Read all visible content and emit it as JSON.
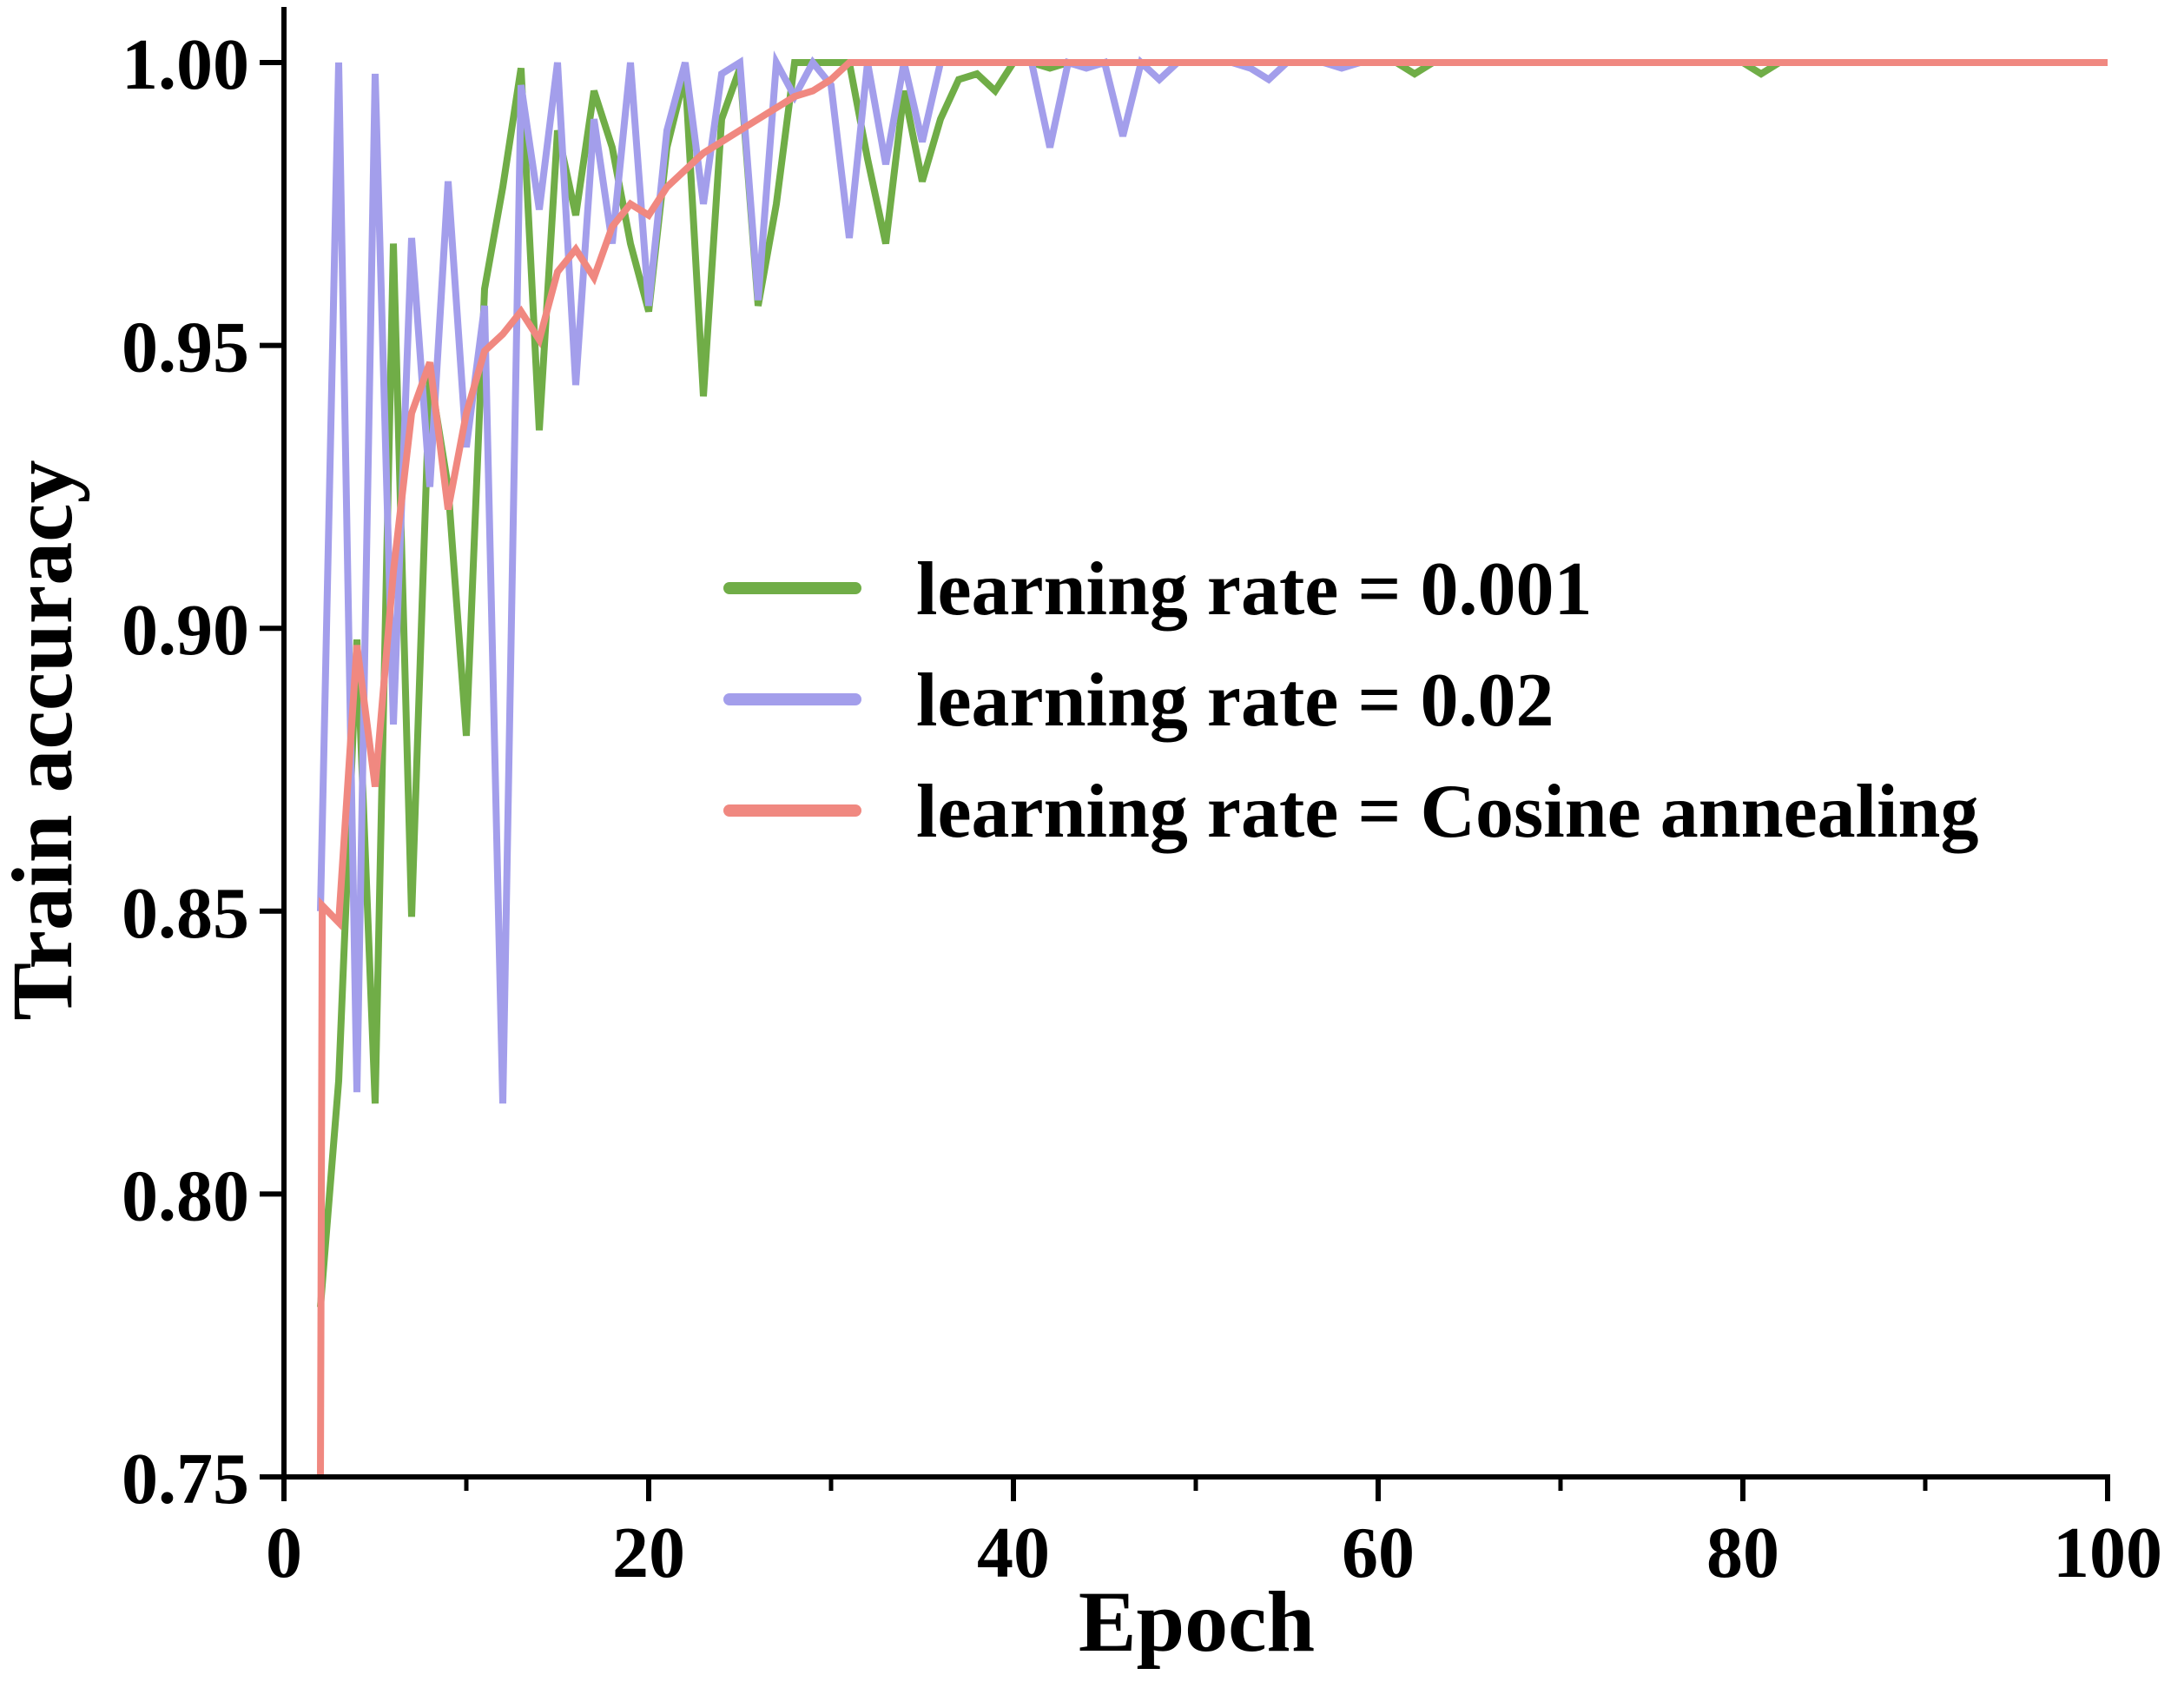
{
  "chart_data": {
    "type": "line",
    "title": "",
    "xlabel": "Epoch",
    "ylabel": "Train accuracy",
    "xlim": [
      0,
      100
    ],
    "ylim": [
      0.75,
      1.0
    ],
    "xticks": [
      0,
      20,
      40,
      60,
      80,
      100
    ],
    "xtick_labels": [
      "0",
      "20",
      "40",
      "60",
      "80",
      "100"
    ],
    "yticks": [
      0.75,
      0.8,
      0.85,
      0.9,
      0.95,
      1.0
    ],
    "ytick_labels": [
      "0.75",
      "0.80",
      "0.85",
      "0.90",
      "0.95",
      "1.00"
    ],
    "grid": false,
    "legend_position": "center-right",
    "series": [
      {
        "name": "learning rate = 0.001",
        "color": "#70AD47",
        "x": [
          2,
          3,
          4,
          5,
          6,
          7,
          8,
          9,
          10,
          11,
          12,
          13,
          14,
          15,
          16,
          17,
          18,
          19,
          20,
          21,
          22,
          23,
          24,
          25,
          26,
          27,
          28,
          29,
          30,
          31,
          32,
          33,
          34,
          35,
          36,
          37,
          38,
          39,
          40,
          41,
          42,
          43,
          44,
          45,
          46,
          47,
          48,
          49,
          50,
          51,
          52,
          53,
          54,
          55,
          56,
          57,
          58,
          59,
          60,
          61,
          62,
          63,
          64,
          65,
          66,
          67,
          68,
          69,
          70,
          71,
          72,
          73,
          74,
          75,
          76,
          77,
          78,
          79,
          80,
          81,
          82,
          83,
          84,
          85,
          86,
          87,
          88,
          89,
          90,
          91,
          92,
          93,
          94,
          95,
          96,
          97,
          98,
          99,
          100
        ],
        "y": [
          0.78,
          0.82,
          0.898,
          0.816,
          0.968,
          0.849,
          0.945,
          0.925,
          0.881,
          0.96,
          0.978,
          0.999,
          0.935,
          0.988,
          0.973,
          0.995,
          0.985,
          0.968,
          0.956,
          0.985,
          0.998,
          0.941,
          0.99,
          0.999,
          0.957,
          0.975,
          1.0,
          1.0,
          1.0,
          1.0,
          0.983,
          0.968,
          0.995,
          0.979,
          0.99,
          0.997,
          0.998,
          0.995,
          1.0,
          1.0,
          0.999,
          1.0,
          1.0,
          1.0,
          1.0,
          1.0,
          1.0,
          1.0,
          1.0,
          1.0,
          1.0,
          1.0,
          1.0,
          1.0,
          1.0,
          1.0,
          1.0,
          1.0,
          1.0,
          1.0,
          0.998,
          1.0,
          1.0,
          1.0,
          1.0,
          1.0,
          1.0,
          1.0,
          1.0,
          1.0,
          1.0,
          1.0,
          1.0,
          1.0,
          1.0,
          1.0,
          1.0,
          1.0,
          1.0,
          0.998,
          1.0,
          1.0,
          1.0,
          1.0,
          1.0,
          1.0,
          1.0,
          1.0,
          1.0,
          1.0,
          1.0,
          1.0,
          1.0,
          1.0,
          1.0,
          1.0,
          1.0,
          1.0,
          1.0
        ]
      },
      {
        "name": "learning rate = 0.02",
        "color": "#A39EEB",
        "x": [
          2,
          3,
          4,
          5,
          6,
          7,
          8,
          9,
          10,
          11,
          12,
          13,
          14,
          15,
          16,
          17,
          18,
          19,
          20,
          21,
          22,
          23,
          24,
          25,
          26,
          27,
          28,
          29,
          30,
          31,
          32,
          33,
          34,
          35,
          36,
          37,
          38,
          39,
          40,
          41,
          42,
          43,
          44,
          45,
          46,
          47,
          48,
          49,
          50,
          51,
          52,
          53,
          54,
          55,
          56,
          57,
          58,
          59,
          60,
          61,
          62,
          63,
          64,
          65,
          66,
          67,
          68,
          69,
          70,
          71,
          72,
          73,
          74,
          75,
          76,
          77,
          78,
          79,
          80,
          81,
          82,
          83,
          84,
          85,
          86,
          87,
          88,
          89,
          90,
          91,
          92,
          93,
          94,
          95,
          96,
          97,
          98,
          99,
          100
        ],
        "y": [
          0.85,
          1.0,
          0.818,
          0.998,
          0.883,
          0.969,
          0.925,
          0.979,
          0.932,
          0.957,
          0.816,
          0.996,
          0.974,
          1.0,
          0.943,
          0.99,
          0.968,
          1.0,
          0.957,
          0.988,
          1.0,
          0.975,
          0.998,
          1.0,
          0.958,
          1.0,
          0.994,
          1.0,
          0.996,
          0.969,
          1.0,
          0.982,
          1.0,
          0.986,
          1.0,
          1.0,
          1.0,
          1.0,
          1.0,
          1.0,
          0.985,
          1.0,
          0.999,
          1.0,
          0.987,
          1.0,
          0.997,
          1.0,
          1.0,
          1.0,
          1.0,
          0.999,
          0.997,
          1.0,
          1.0,
          1.0,
          0.999,
          1.0,
          1.0,
          1.0,
          1.0,
          1.0,
          1.0,
          1.0,
          1.0,
          1.0,
          1.0,
          1.0,
          1.0,
          1.0,
          1.0,
          1.0,
          1.0,
          1.0,
          1.0,
          1.0,
          1.0,
          1.0,
          1.0,
          1.0,
          1.0,
          1.0,
          1.0,
          1.0,
          1.0,
          1.0,
          1.0,
          1.0,
          1.0,
          1.0,
          1.0,
          1.0,
          1.0,
          1.0,
          1.0,
          1.0,
          1.0,
          1.0,
          1.0
        ]
      },
      {
        "name": "learning rate = Cosine annealing",
        "color": "#F08880",
        "x": [
          2,
          2.1,
          2.4,
          3,
          4,
          5,
          6,
          7,
          8,
          9,
          10,
          11,
          12,
          13,
          14,
          15,
          16,
          17,
          18,
          19,
          20,
          21,
          22,
          23,
          24,
          25,
          26,
          27,
          28,
          29,
          30,
          31,
          32,
          33,
          34,
          35,
          36,
          37,
          38,
          39,
          40,
          41,
          42,
          43,
          44,
          45,
          46,
          47,
          48,
          49,
          50,
          51,
          52,
          53,
          54,
          55,
          56,
          57,
          58,
          59,
          60,
          61,
          62,
          63,
          64,
          65,
          66,
          67,
          68,
          69,
          70,
          71,
          72,
          73,
          74,
          75,
          76,
          77,
          78,
          79,
          80,
          81,
          82,
          83,
          84,
          85,
          86,
          87,
          88,
          89,
          90,
          91,
          92,
          93,
          94,
          95,
          96,
          97,
          98,
          99,
          100
        ],
        "y": [
          0.75,
          0.851,
          0.85,
          0.848,
          0.897,
          0.872,
          0.91,
          0.938,
          0.947,
          0.921,
          0.938,
          0.949,
          0.952,
          0.956,
          0.951,
          0.963,
          0.967,
          0.962,
          0.971,
          0.975,
          0.973,
          0.978,
          0.981,
          0.984,
          0.986,
          0.988,
          0.99,
          0.992,
          0.994,
          0.995,
          0.997,
          1.0,
          1.0,
          1.0,
          1.0,
          1.0,
          1.0,
          1.0,
          1.0,
          1.0,
          1.0,
          1.0,
          1.0,
          1.0,
          1.0,
          1.0,
          1.0,
          1.0,
          1.0,
          1.0,
          1.0,
          1.0,
          1.0,
          1.0,
          1.0,
          1.0,
          1.0,
          1.0,
          1.0,
          1.0,
          1.0,
          1.0,
          1.0,
          1.0,
          1.0,
          1.0,
          1.0,
          1.0,
          1.0,
          1.0,
          1.0,
          1.0,
          1.0,
          1.0,
          1.0,
          1.0,
          1.0,
          1.0,
          1.0,
          1.0,
          1.0,
          1.0,
          1.0,
          1.0,
          1.0,
          1.0,
          1.0,
          1.0,
          1.0,
          1.0,
          1.0,
          1.0,
          1.0,
          1.0,
          1.0,
          1.0,
          1.0,
          1.0,
          1.0,
          1.0,
          1.0
        ]
      }
    ]
  }
}
